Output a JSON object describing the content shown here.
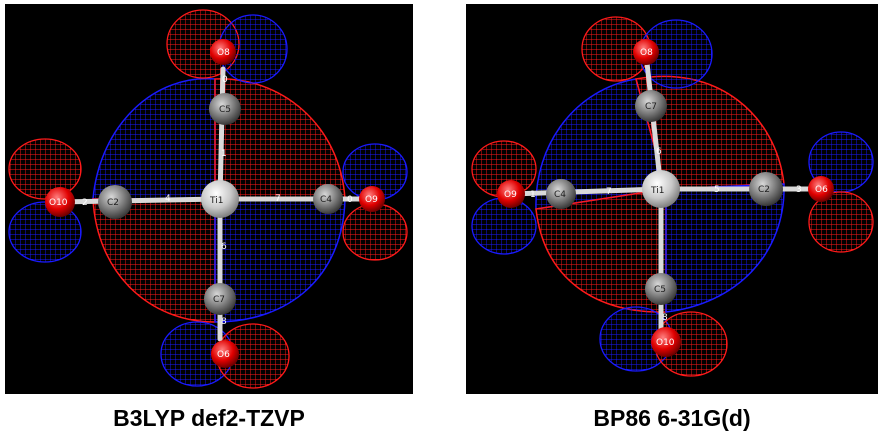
{
  "colors": {
    "positive_lobe": "#ff1a1a",
    "negative_lobe": "#1a1aff",
    "background": "#000000",
    "atom": "#8a8a8a"
  },
  "left": {
    "caption": "B3LYP def2-TZVP",
    "atom_labels": {
      "ti": "Ti1",
      "c_top": "C5",
      "c_left": "C2",
      "c_right": "C4",
      "c_bottom": "C7",
      "o_top": "O8",
      "o_left": "O10",
      "o_right": "O9",
      "o_bottom": "O6"
    },
    "bond_labels": {
      "b1": "1",
      "b2": "2",
      "b4": "4",
      "b6": "6",
      "b7": "7",
      "b0a": "0",
      "b0b": "0",
      "b8": "8"
    }
  },
  "right": {
    "caption": "BP86 6-31G(d)",
    "atom_labels": {
      "ti": "Ti1",
      "c_top": "C7",
      "c_left": "C4",
      "c_right": "C2",
      "c_bottom": "C5",
      "o_top": "O8",
      "o_left": "O9",
      "o_right": "O6",
      "o_bottom": "O10"
    },
    "bond_labels": {
      "b1": "1",
      "b3": "3",
      "b5": "5",
      "b6": "6",
      "b7": "7",
      "b8": "8"
    }
  }
}
